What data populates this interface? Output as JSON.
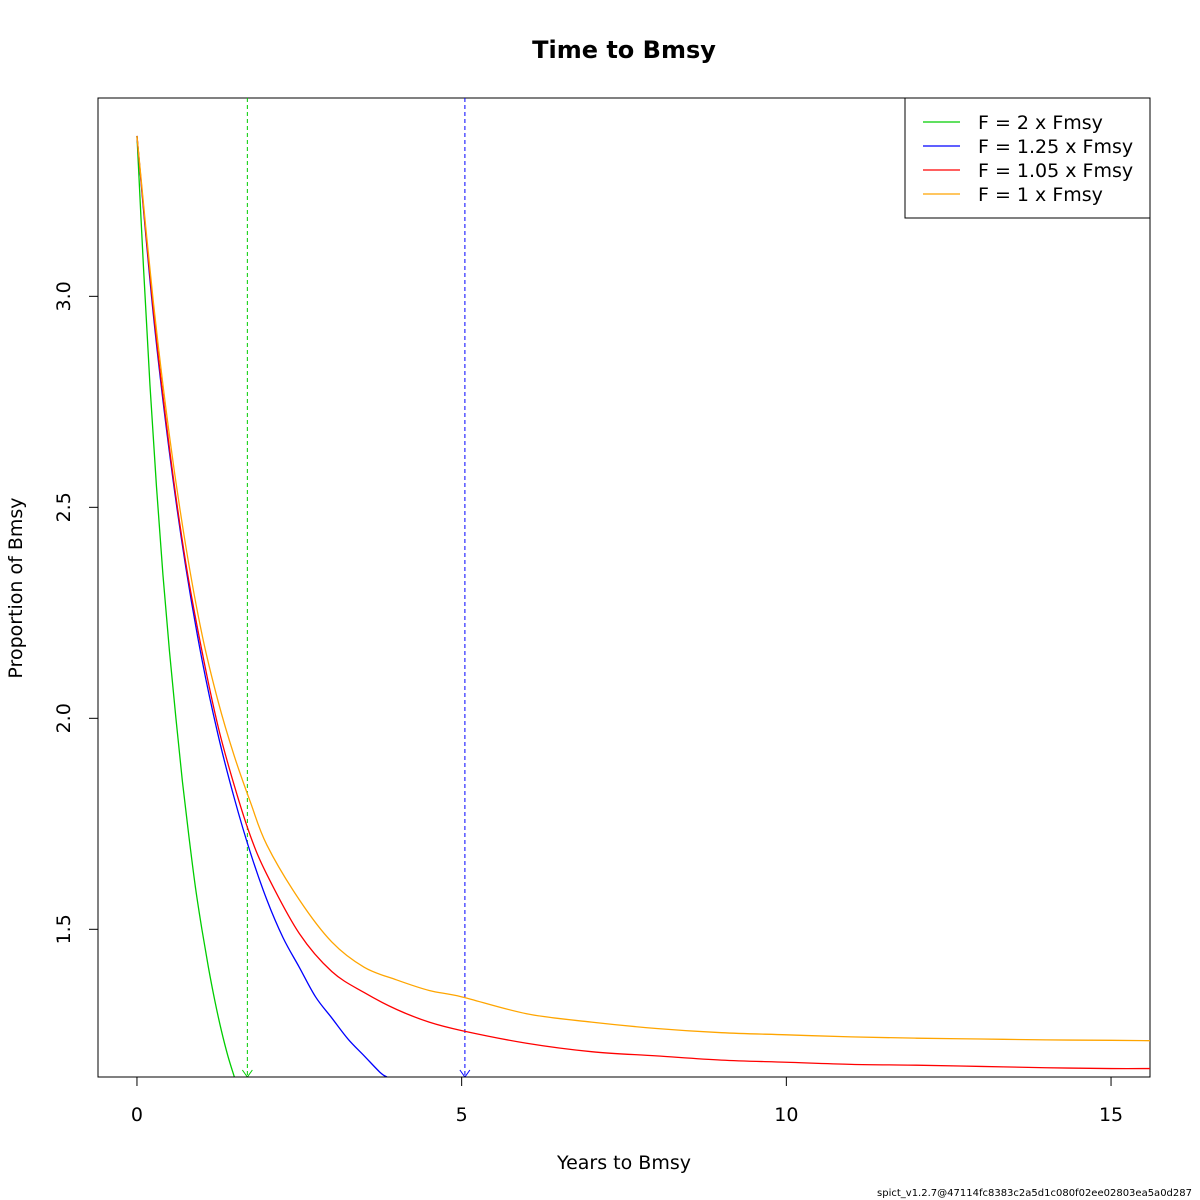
{
  "chart_data": {
    "type": "line",
    "title": "Time to Bmsy",
    "xlabel": "Years to Bmsy",
    "ylabel": "Proportion of Bmsy",
    "xlim": [
      -0.6,
      15.6
    ],
    "ylim": [
      1.15,
      3.47
    ],
    "xticks": [
      0,
      5,
      10,
      15
    ],
    "xtick_labels": [
      "0",
      "5",
      "10",
      "15"
    ],
    "yticks": [
      1.5,
      2.0,
      2.5,
      3.0
    ],
    "ytick_labels": [
      "1.5",
      "2.0",
      "2.5",
      "3.0"
    ],
    "grid": false,
    "legend_position": "top-right",
    "series": [
      {
        "name": "F = 2 x Fmsy",
        "color": "#00cd00",
        "x": [
          0,
          0.1,
          0.2,
          0.3,
          0.4,
          0.5,
          0.6,
          0.7,
          0.8,
          0.9,
          1.0,
          1.1,
          1.2,
          1.3,
          1.4,
          1.5
        ],
        "y": [
          3.38,
          3.07,
          2.79,
          2.55,
          2.34,
          2.16,
          2.0,
          1.85,
          1.72,
          1.6,
          1.5,
          1.41,
          1.33,
          1.26,
          1.2,
          1.15
        ]
      },
      {
        "name": "F = 1.25 x Fmsy",
        "color": "#0000ff",
        "x": [
          0,
          0.25,
          0.5,
          0.75,
          1.0,
          1.25,
          1.5,
          1.75,
          2.0,
          2.25,
          2.5,
          2.75,
          3.0,
          3.25,
          3.5,
          3.75,
          3.85
        ],
        "y": [
          3.38,
          2.96,
          2.63,
          2.36,
          2.14,
          1.96,
          1.81,
          1.68,
          1.57,
          1.48,
          1.41,
          1.34,
          1.29,
          1.24,
          1.2,
          1.16,
          1.15
        ]
      },
      {
        "name": "F = 1.05 x Fmsy",
        "color": "#ff0000",
        "x": [
          0,
          0.25,
          0.5,
          0.75,
          1.0,
          1.25,
          1.5,
          1.75,
          2.0,
          2.5,
          3.0,
          3.5,
          4.0,
          4.5,
          5.0,
          6.0,
          7.0,
          8.0,
          9.0,
          10.0,
          11.0,
          12.0,
          13.0,
          14.0,
          15.0,
          15.6
        ],
        "y": [
          3.38,
          2.97,
          2.64,
          2.37,
          2.16,
          1.98,
          1.84,
          1.72,
          1.63,
          1.49,
          1.4,
          1.35,
          1.31,
          1.28,
          1.26,
          1.23,
          1.21,
          1.2,
          1.19,
          1.185,
          1.18,
          1.178,
          1.175,
          1.172,
          1.17,
          1.17
        ]
      },
      {
        "name": "F = 1 x Fmsy",
        "color": "#ffa500",
        "x": [
          0,
          0.25,
          0.5,
          0.75,
          1.0,
          1.25,
          1.5,
          1.75,
          2.0,
          2.5,
          3.0,
          3.5,
          4.0,
          4.5,
          5.0,
          6.0,
          7.0,
          8.0,
          9.0,
          10.0,
          11.0,
          12.0,
          13.0,
          14.0,
          15.0,
          15.6
        ],
        "y": [
          3.38,
          2.99,
          2.67,
          2.41,
          2.2,
          2.04,
          1.91,
          1.8,
          1.7,
          1.57,
          1.47,
          1.41,
          1.38,
          1.355,
          1.34,
          1.3,
          1.28,
          1.265,
          1.255,
          1.25,
          1.245,
          1.242,
          1.24,
          1.238,
          1.237,
          1.236
        ]
      }
    ],
    "reference_lines": [
      {
        "x": 1.7,
        "color": "#00cd00"
      },
      {
        "x": 5.05,
        "color": "#0000ff"
      }
    ]
  },
  "footer_text": "spict_v1.2.7@47114fc8383c2a5d1c080f02ee02803ea5a0d287"
}
